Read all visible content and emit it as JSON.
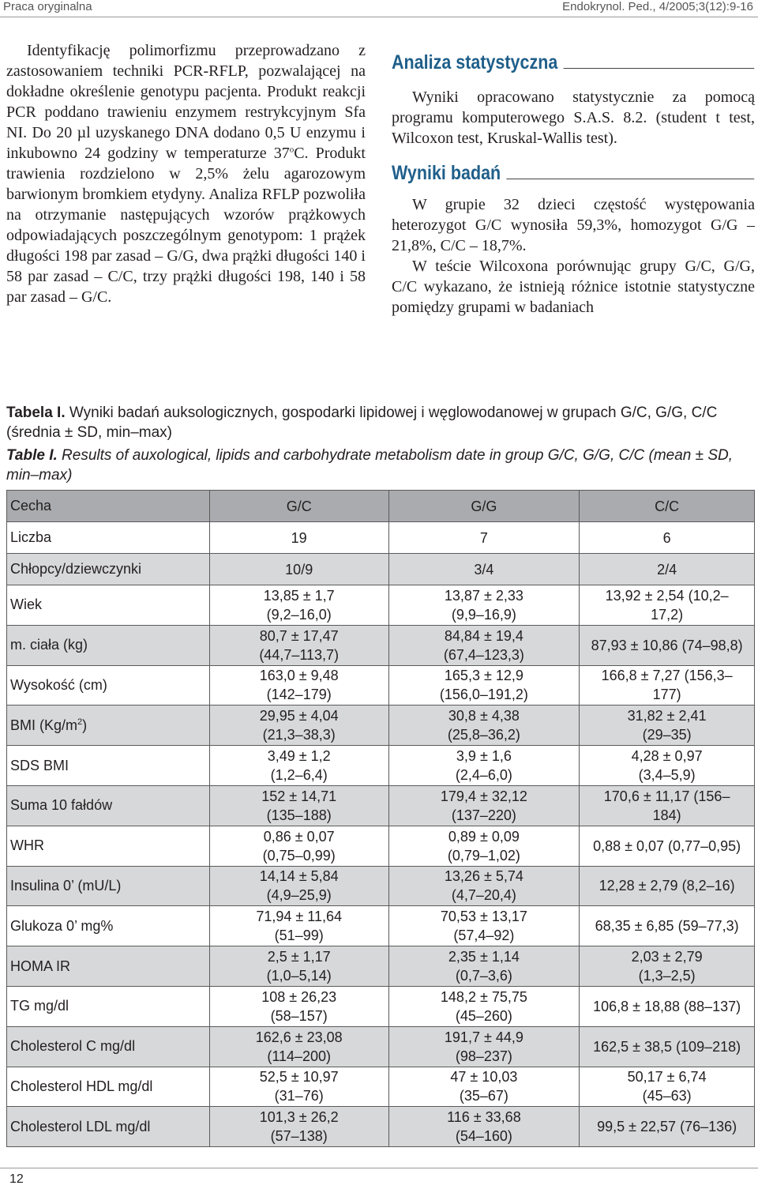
{
  "header": {
    "left": "Praca oryginalna",
    "right": "Endokrynol. Ped., 4/2005;3(12):9-16"
  },
  "left_column": {
    "paragraph": "Identyfikację polimorfizmu przeprowadzano z zastosowaniem techniki PCR-RFLP, pozwalającej na dokładne określenie genotypu pacjenta. Produkt reakcji PCR poddano trawieniu enzymem restrykcyjnym Sfa NI. Do 20 µl uzyskanego DNA dodano 0,5 U enzymu i inkubowno 24 godziny w temperaturze 37",
    "degree": "o",
    "paragraph_cont": "C. Produkt trawienia rozdzielono w 2,5% żelu agarozowym barwionym bromkiem etydyny. Analiza RFLP pozwoliła na otrzymanie następujących wzorów prążkowych odpowiadających poszczególnym genotypom: 1 prążek długości 198 par zasad – G/G, dwa prążki długości 140 i 58 par zasad – C/C, trzy prążki długości 198, 140 i 58 par zasad – G/C."
  },
  "right_column": {
    "section1_title": "Analiza statystyczna",
    "section1_text": "Wyniki opracowano statystycznie za pomocą programu komputerowego S.A.S. 8.2. (student t test, Wilcoxon test, Kruskal-Wallis test).",
    "section2_title": "Wyniki badań",
    "section2_p1": "W grupie 32 dzieci częstość występowania heterozygot G/C wynosiła 59,3%, homozygot G/G – 21,8%, C/C – 18,7%.",
    "section2_p2": "W teście Wilcoxona porównując grupy G/C, G/G, C/C wykazano, że istnieją różnice istotnie statystyczne pomiędzy grupami w badaniach"
  },
  "captions": {
    "pl_label": "Tabela I.",
    "pl_text": " Wyniki badań auksologicznych, gospodarki lipidowej i węglowodanowej w grupach G/C, G/G, C/C (średnia ± SD, min–max)",
    "en_label": "Table I.",
    "en_text": " Results of auxological, lipids and carbohydrate metabolism date in group G/C, G/G, C/C (mean ± SD, min–max)"
  },
  "table": {
    "headers": [
      "Cecha",
      "G/C",
      "G/G",
      "C/C"
    ],
    "count_row": [
      "Liczba",
      "19",
      "7",
      "6"
    ],
    "sex_row": [
      "Chłopcy/dziewczynki",
      "10/9",
      "3/4",
      "2/4"
    ],
    "rows": [
      {
        "label": "Wiek",
        "gc": [
          "13,85 ± 1,7",
          "(9,2–16,0)"
        ],
        "gg": [
          "13,87 ± 2,33",
          "(9,9–16,9)"
        ],
        "cc": [
          "13,92 ± 2,54 (10,2–",
          "17,2)"
        ]
      },
      {
        "label": "m. ciała (kg)",
        "gc": [
          "80,7 ± 17,47",
          "(44,7–113,7)"
        ],
        "gg": [
          "84,84 ± 19,4",
          "(67,4–123,3)"
        ],
        "cc": [
          "87,93 ± 10,86 (74–98,8)",
          ""
        ]
      },
      {
        "label": "Wysokość (cm)",
        "gc": [
          "163,0 ± 9,48",
          "(142–179)"
        ],
        "gg": [
          "165,3 ± 12,9",
          "(156,0–191,2)"
        ],
        "cc": [
          "166,8 ± 7,27 (156,3–",
          "177)"
        ]
      },
      {
        "label": "BMI (Kg/m",
        "sup": "2",
        "label_end": ")",
        "gc": [
          "29,95 ± 4,04",
          "(21,3–38,3)"
        ],
        "gg": [
          "30,8 ± 4,38",
          "(25,8–36,2)"
        ],
        "cc": [
          "31,82 ± 2,41",
          "(29–35)"
        ]
      },
      {
        "label": "SDS BMI",
        "gc": [
          "3,49 ± 1,2",
          "(1,2–6,4)"
        ],
        "gg": [
          "3,9 ± 1,6",
          "(2,4–6,0)"
        ],
        "cc": [
          "4,28 ± 0,97",
          "(3,4–5,9)"
        ]
      },
      {
        "label": "Suma 10 fałdów",
        "gc": [
          "152 ± 14,71",
          "(135–188)"
        ],
        "gg": [
          "179,4 ± 32,12",
          "(137–220)"
        ],
        "cc": [
          "170,6 ± 11,17 (156–",
          "184)"
        ]
      },
      {
        "label": "WHR",
        "gc": [
          "0,86 ± 0,07",
          "(0,75–0,99)"
        ],
        "gg": [
          "0,89 ± 0,09",
          "(0,79–1,02)"
        ],
        "cc": [
          "0,88 ± 0,07 (0,77–0,95)",
          ""
        ]
      },
      {
        "label": "Insulina 0’ (mU/L)",
        "gc": [
          "14,14 ± 5,84",
          "(4,9–25,9)"
        ],
        "gg": [
          "13,26 ± 5,74",
          "(4,7–20,4)"
        ],
        "cc": [
          "12,28 ± 2,79 (8,2–16)",
          ""
        ]
      },
      {
        "label": "Glukoza 0’ mg%",
        "gc": [
          "71,94 ± 11,64",
          "(51–99)"
        ],
        "gg": [
          "70,53 ± 13,17",
          "(57,4–92)"
        ],
        "cc": [
          "68,35 ± 6,85 (59–77,3)",
          ""
        ]
      },
      {
        "label": "HOMA IR",
        "gc": [
          "2,5 ± 1,17",
          "(1,0–5,14)"
        ],
        "gg": [
          "2,35 ± 1,14",
          "(0,7–3,6)"
        ],
        "cc": [
          "2,03 ± 2,79",
          "(1,3–2,5)"
        ]
      },
      {
        "label": "TG mg/dl",
        "gc": [
          "108 ± 26,23",
          "(58–157)"
        ],
        "gg": [
          "148,2 ± 75,75",
          "(45–260)"
        ],
        "cc": [
          "106,8 ± 18,88 (88–137)",
          ""
        ]
      },
      {
        "label": "Cholesterol C mg/dl",
        "gc": [
          "162,6 ± 23,08",
          "(114–200)"
        ],
        "gg": [
          "191,7 ± 44,9",
          "(98–237)"
        ],
        "cc": [
          "162,5 ± 38,5 (109–218)",
          ""
        ]
      },
      {
        "label": "Cholesterol HDL mg/dl",
        "gc": [
          "52,5 ± 10,97",
          "(31–76)"
        ],
        "gg": [
          "47 ± 10,03",
          "(35–67)"
        ],
        "cc": [
          "50,17 ± 6,74",
          "(45–63)"
        ]
      },
      {
        "label": "Cholesterol LDL mg/dl",
        "gc": [
          "101,3 ± 26,2",
          "(57–138)"
        ],
        "gg": [
          "116 ± 33,68",
          "(54–160)"
        ],
        "cc": [
          "99,5 ± 22,57 (76–136)",
          ""
        ]
      }
    ]
  },
  "page_number": "12"
}
